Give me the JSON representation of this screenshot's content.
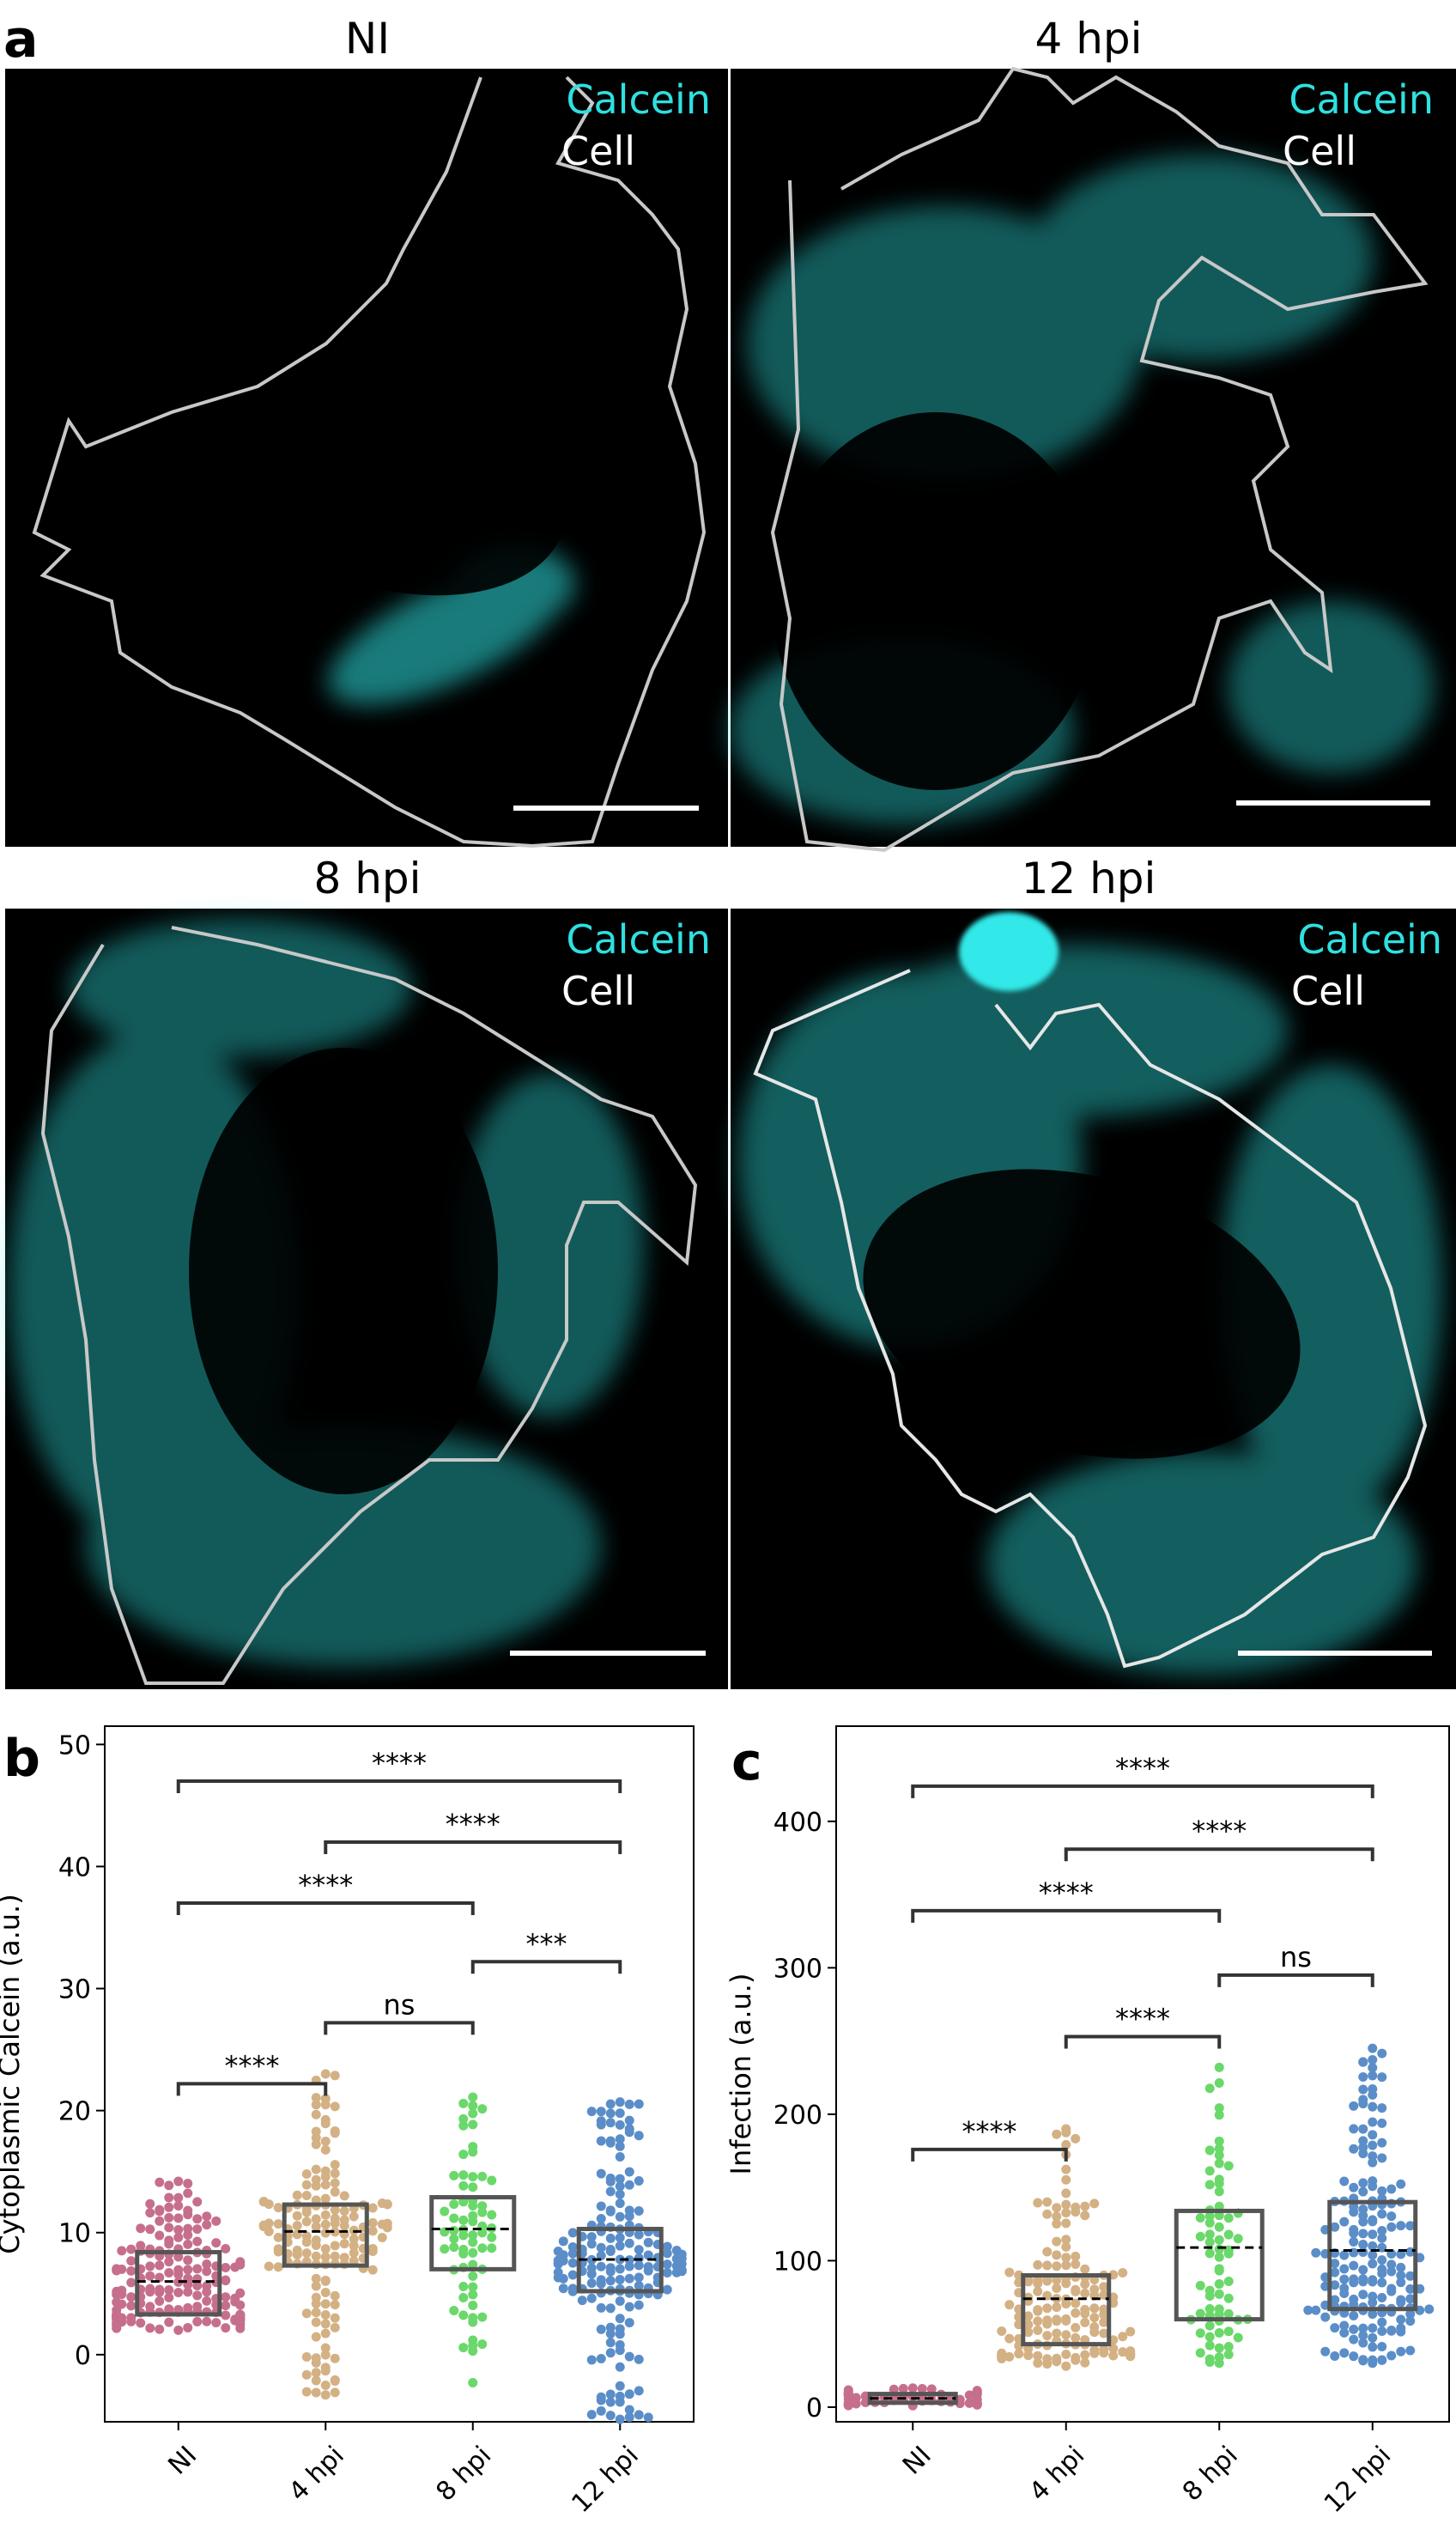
{
  "panel_letters": {
    "a": "a",
    "b": "b",
    "c": "c"
  },
  "micrographs": [
    {
      "title": "NI",
      "legend": [
        "Calcein",
        "Cell"
      ]
    },
    {
      "title": "4 hpi",
      "legend": [
        "Calcein",
        "Cell"
      ]
    },
    {
      "title": "8 hpi",
      "legend": [
        "Calcein",
        "Cell"
      ]
    },
    {
      "title": "12 hpi",
      "legend": [
        "Calcein",
        "Cell"
      ]
    }
  ],
  "colors": {
    "calcein": "#2fe0e0",
    "cell_outline": "#c8c8c8",
    "groups": [
      "#c66f8d",
      "#d3b184",
      "#6ad86a",
      "#5b8ec8"
    ]
  },
  "chart_data": [
    {
      "type": "box-swarm",
      "panel": "b",
      "ylabel": "Cytoplasmic Calcein (a.u.)",
      "categories": [
        "NI",
        "4 hpi",
        "8 hpi",
        "12 hpi"
      ],
      "ylim": [
        -5.5,
        51.5
      ],
      "yticks": [
        0,
        10,
        20,
        30,
        40,
        50
      ],
      "boxes": [
        {
          "q1": 3.3,
          "q3": 8.4,
          "mean": 6.0,
          "min": 2.0,
          "max": 14.2,
          "n": 180
        },
        {
          "q1": 7.3,
          "q3": 12.3,
          "mean": 10.1,
          "min": -3.3,
          "max": 23.0,
          "n": 160
        },
        {
          "q1": 7.0,
          "q3": 12.9,
          "mean": 10.3,
          "min": -2.3,
          "max": 21.1,
          "n": 70
        },
        {
          "q1": 5.2,
          "q3": 10.3,
          "mean": 7.8,
          "min": -5.3,
          "max": 20.7,
          "n": 180
        }
      ],
      "significance": [
        {
          "from": 0,
          "to": 1,
          "y": 22.2,
          "label": "****"
        },
        {
          "from": 1,
          "to": 2,
          "y": 27.2,
          "label": "ns"
        },
        {
          "from": 2,
          "to": 3,
          "y": 32.2,
          "label": "***"
        },
        {
          "from": 0,
          "to": 2,
          "y": 37.0,
          "label": "****"
        },
        {
          "from": 1,
          "to": 3,
          "y": 42.0,
          "label": "****"
        },
        {
          "from": 0,
          "to": 3,
          "y": 47.0,
          "label": "****"
        }
      ]
    },
    {
      "type": "box-swarm",
      "panel": "c",
      "ylabel": "Infection (a.u.)",
      "categories": [
        "NI",
        "4 hpi",
        "8 hpi",
        "12 hpi"
      ],
      "ylim": [
        -10,
        465
      ],
      "yticks": [
        0,
        100,
        200,
        300,
        400
      ],
      "boxes": [
        {
          "q1": 3,
          "q3": 9,
          "mean": 6,
          "min": 1,
          "max": 13,
          "n": 60
        },
        {
          "q1": 43,
          "q3": 90,
          "mean": 74,
          "min": 28,
          "max": 190,
          "n": 160
        },
        {
          "q1": 60,
          "q3": 134,
          "mean": 109,
          "min": 30,
          "max": 232,
          "n": 70
        },
        {
          "q1": 67,
          "q3": 140,
          "mean": 107,
          "min": 30,
          "max": 245,
          "n": 180
        }
      ],
      "significance": [
        {
          "from": 0,
          "to": 1,
          "y": 176,
          "label": "****"
        },
        {
          "from": 1,
          "to": 2,
          "y": 253,
          "label": "****"
        },
        {
          "from": 2,
          "to": 3,
          "y": 295,
          "label": "ns"
        },
        {
          "from": 0,
          "to": 2,
          "y": 339,
          "label": "****"
        },
        {
          "from": 1,
          "to": 3,
          "y": 381,
          "label": "****"
        },
        {
          "from": 0,
          "to": 3,
          "y": 424,
          "label": "****"
        }
      ]
    }
  ]
}
